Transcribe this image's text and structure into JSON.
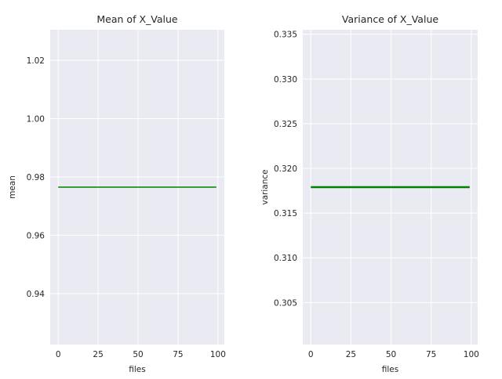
{
  "chart_data": [
    {
      "type": "line",
      "title": "Mean of X_Value",
      "xlabel": "files",
      "ylabel": "mean",
      "xlim": [
        -5,
        104
      ],
      "ylim": [
        0.9225,
        1.0305
      ],
      "xticks": [
        0,
        25,
        50,
        75,
        100
      ],
      "yticks": [
        0.94,
        0.96,
        0.98,
        1.0,
        1.02
      ],
      "ytick_labels": [
        "0.94",
        "0.96",
        "0.98",
        "1.00",
        "1.02"
      ],
      "grid": true,
      "series": [
        {
          "color": "#008000",
          "x": [
            0,
            99
          ],
          "y": [
            0.9765,
            0.9765
          ]
        }
      ]
    },
    {
      "type": "line",
      "title": "Variance of X_Value",
      "xlabel": "files",
      "ylabel": "variance",
      "xlim": [
        -5,
        104
      ],
      "ylim": [
        0.3003,
        0.3355
      ],
      "xticks": [
        0,
        25,
        50,
        75,
        100
      ],
      "yticks": [
        0.305,
        0.31,
        0.315,
        0.32,
        0.325,
        0.33,
        0.335
      ],
      "ytick_labels": [
        "0.305",
        "0.310",
        "0.315",
        "0.320",
        "0.325",
        "0.330",
        "0.335"
      ],
      "grid": true,
      "series": [
        {
          "color": "#008000",
          "x": [
            0,
            99
          ],
          "y": [
            0.3179,
            0.3179
          ]
        }
      ]
    }
  ]
}
